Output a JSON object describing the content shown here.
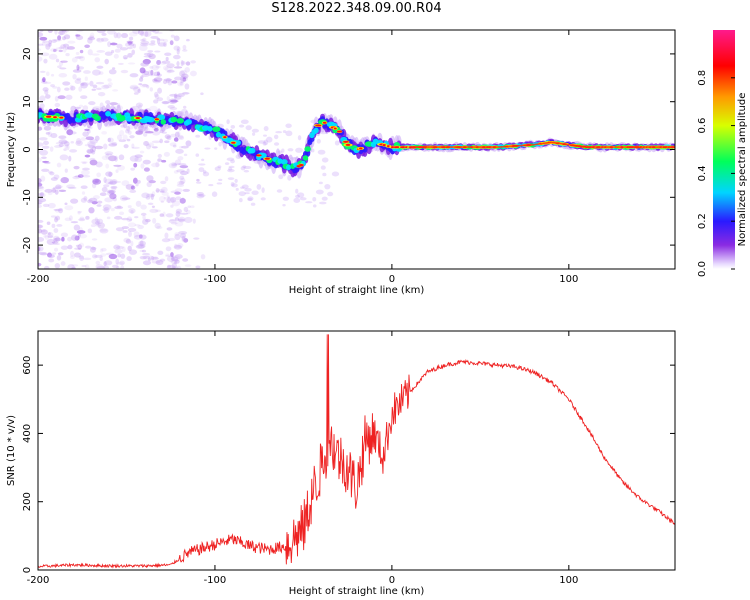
{
  "title": "S128.2022.348.09.00.R04",
  "colors": {
    "snr_line": "#ee2222",
    "frame": "#000000"
  },
  "chart_data": [
    {
      "type": "heatmap",
      "xlabel": "Height of straight line (km)",
      "ylabel": "Frequency (Hz)",
      "xlim": [
        -200,
        160
      ],
      "ylim": [
        -25,
        25
      ],
      "xticks": [
        -200,
        -100,
        0,
        100
      ],
      "yticks": [
        -20,
        -10,
        0,
        10,
        20
      ],
      "colorbar": {
        "label": "Normalized spectral amplitude",
        "range": [
          0.0,
          1.0
        ],
        "ticks": [
          "0.0",
          "0.2",
          "0.4",
          "0.6",
          "0.8"
        ],
        "colormap": "hsv-like: purple (low) → blue → cyan → green → yellow → red → magenta (high)"
      },
      "ridge": {
        "x": [
          -200,
          -180,
          -160,
          -140,
          -120,
          -110,
          -100,
          -90,
          -80,
          -70,
          -60,
          -55,
          -50,
          -45,
          -40,
          -35,
          -30,
          -25,
          -20,
          -15,
          -10,
          -5,
          0,
          10,
          20,
          40,
          60,
          80,
          90,
          100,
          110,
          130,
          160
        ],
        "y": [
          7,
          6.5,
          7,
          6.5,
          6,
          5,
          4,
          1.5,
          -0.5,
          -2,
          -3,
          -4,
          -3,
          3,
          6,
          5,
          4,
          1,
          0,
          0.5,
          1.5,
          1,
          0.5,
          0.5,
          0.5,
          0.5,
          0.5,
          1,
          1.5,
          1,
          0.5,
          0.5,
          0.5
        ]
      },
      "grid": false
    },
    {
      "type": "line",
      "xlabel": "Height of straight line (km)",
      "ylabel": "SNR (10 * v/v)",
      "xlim": [
        -200,
        160
      ],
      "ylim": [
        0,
        700
      ],
      "xticks": [
        -200,
        -100,
        0,
        100
      ],
      "yticks": [
        0,
        200,
        400,
        600
      ],
      "series": [
        {
          "x": [
            -200,
            -180,
            -160,
            -140,
            -125,
            -115,
            -100,
            -90,
            -80,
            -70,
            -60,
            -50,
            -45,
            -40,
            -35,
            -30,
            -25,
            -20,
            -15,
            -10,
            -5,
            0,
            10,
            20,
            30,
            40,
            50,
            60,
            70,
            80,
            90,
            100,
            110,
            120,
            130,
            140,
            150,
            160
          ],
          "y": [
            10,
            15,
            12,
            12,
            15,
            50,
            75,
            90,
            70,
            60,
            70,
            120,
            220,
            300,
            380,
            330,
            300,
            240,
            380,
            400,
            330,
            460,
            520,
            580,
            600,
            610,
            605,
            600,
            595,
            580,
            550,
            500,
            420,
            330,
            260,
            210,
            175,
            135
          ]
        }
      ],
      "grid": false
    }
  ]
}
